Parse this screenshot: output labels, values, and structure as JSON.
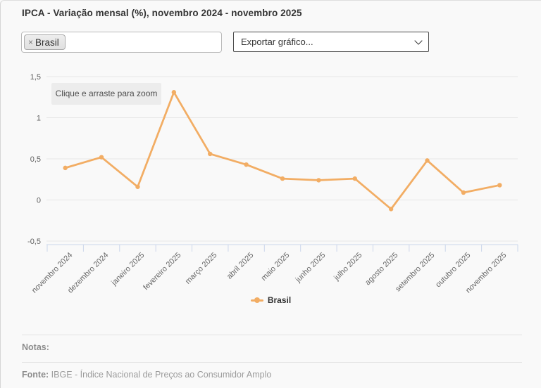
{
  "header": {
    "title": "IPCA - Variação mensal (%), novembro 2024 - novembro 2025"
  },
  "controls": {
    "tag_label": "Brasil",
    "tag_remove_glyph": "×",
    "export_label": "Exportar gráfico..."
  },
  "chart_data": {
    "type": "line",
    "title": "",
    "xlabel": "",
    "ylabel": "",
    "zoom_hint": "Clique e arraste para zoom",
    "categories": [
      "novembro 2024",
      "dezembro 2024",
      "janeiro 2025",
      "fevereiro 2025",
      "março 2025",
      "abril 2025",
      "maio 2025",
      "junho 2025",
      "julho 2025",
      "agosto 2025",
      "setembro 2025",
      "outubro 2025",
      "novembro 2025"
    ],
    "series": [
      {
        "name": "Brasil",
        "values": [
          0.39,
          0.52,
          0.16,
          1.31,
          0.56,
          0.43,
          0.26,
          0.24,
          0.26,
          -0.11,
          0.48,
          0.09,
          0.18
        ],
        "color": "#f2ad64"
      }
    ],
    "ylim": [
      -0.5,
      1.5
    ],
    "yticks": [
      {
        "value": 1.5,
        "label": "1,5"
      },
      {
        "value": 1,
        "label": "1"
      },
      {
        "value": 0.5,
        "label": "0,5"
      },
      {
        "value": 0,
        "label": "0"
      },
      {
        "value": -0.5,
        "label": "-0,5"
      }
    ],
    "grid": true,
    "legend_position": "bottom",
    "grid_color": "#e6e6e6",
    "axis_color": "#ccd6eb"
  },
  "footer": {
    "notes_label": "Notas:",
    "source_label": "Fonte:",
    "source_text": "IBGE - Índice Nacional de Preços ao Consumidor Amplo"
  }
}
